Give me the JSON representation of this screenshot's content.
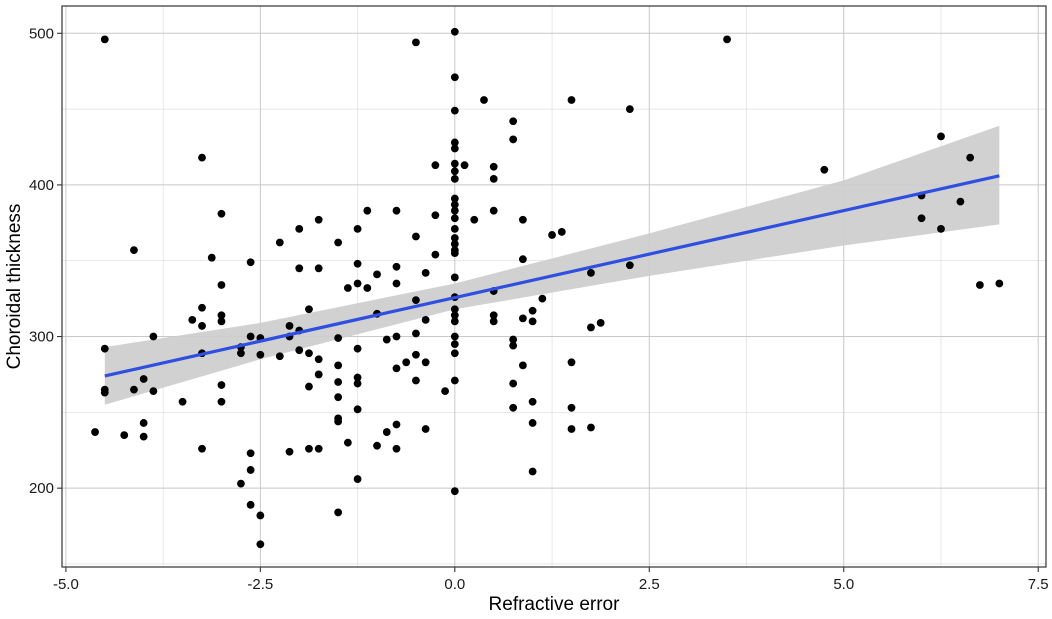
{
  "chart_data": {
    "type": "scatter",
    "title": "",
    "xlabel": "Refractive error",
    "ylabel": "Choroidal thickness",
    "xlim": [
      -5.05,
      7.6
    ],
    "ylim": [
      148,
      518
    ],
    "x_ticks": [
      -5.0,
      -2.5,
      0.0,
      2.5,
      5.0,
      7.5
    ],
    "x_tick_labels": [
      "-5.0",
      "-2.5",
      "0.0",
      "2.5",
      "5.0",
      "7.5"
    ],
    "y_ticks": [
      200,
      300,
      400,
      500
    ],
    "y_tick_labels": [
      "200",
      "300",
      "400",
      "500"
    ],
    "grid": true,
    "legend": "none",
    "colors": {
      "points": "#000000",
      "fit_line": "#2f4fe0",
      "confidence_band": "#cccccc",
      "grid": "#d9d9d9",
      "panel_border": "#333333"
    },
    "fit_line": {
      "x": [
        -4.5,
        7.0
      ],
      "y": [
        274,
        406
      ]
    },
    "confidence_band": {
      "x": [
        -4.5,
        -2.5,
        0.0,
        2.5,
        5.0,
        7.0
      ],
      "lower": [
        255,
        285,
        318,
        340,
        360,
        374
      ],
      "upper": [
        293,
        309,
        335,
        368,
        403,
        439
      ]
    },
    "points": [
      [
        -4.5,
        496
      ],
      [
        -4.5,
        292
      ],
      [
        -4.5,
        265
      ],
      [
        -4.5,
        263
      ],
      [
        -4.625,
        237
      ],
      [
        -4.25,
        235
      ],
      [
        -4.125,
        357
      ],
      [
        -4.125,
        265
      ],
      [
        -4.0,
        272
      ],
      [
        -4.0,
        243
      ],
      [
        -4.0,
        234
      ],
      [
        -3.875,
        300
      ],
      [
        -3.875,
        264
      ],
      [
        -3.5,
        257
      ],
      [
        -3.375,
        311
      ],
      [
        -3.25,
        418
      ],
      [
        -3.25,
        319
      ],
      [
        -3.25,
        307
      ],
      [
        -3.25,
        289
      ],
      [
        -3.25,
        226
      ],
      [
        -3.125,
        352
      ],
      [
        -3.0,
        381
      ],
      [
        -3.0,
        334
      ],
      [
        -3.0,
        314
      ],
      [
        -3.0,
        310
      ],
      [
        -3.0,
        268
      ],
      [
        -3.0,
        257
      ],
      [
        -2.75,
        293
      ],
      [
        -2.75,
        289
      ],
      [
        -2.75,
        203
      ],
      [
        -2.625,
        349
      ],
      [
        -2.625,
        300
      ],
      [
        -2.625,
        223
      ],
      [
        -2.625,
        212
      ],
      [
        -2.625,
        189
      ],
      [
        -2.5,
        299
      ],
      [
        -2.5,
        288
      ],
      [
        -2.5,
        182
      ],
      [
        -2.5,
        163
      ],
      [
        -2.25,
        362
      ],
      [
        -2.25,
        287
      ],
      [
        -2.125,
        307
      ],
      [
        -2.125,
        300
      ],
      [
        -2.125,
        224
      ],
      [
        -2.0,
        371
      ],
      [
        -2.0,
        345
      ],
      [
        -2.0,
        304
      ],
      [
        -2.0,
        291
      ],
      [
        -1.875,
        318
      ],
      [
        -1.875,
        289
      ],
      [
        -1.875,
        267
      ],
      [
        -1.875,
        226
      ],
      [
        -1.75,
        377
      ],
      [
        -1.75,
        345
      ],
      [
        -1.75,
        285
      ],
      [
        -1.75,
        275
      ],
      [
        -1.75,
        226
      ],
      [
        -1.5,
        362
      ],
      [
        -1.5,
        299
      ],
      [
        -1.5,
        281
      ],
      [
        -1.5,
        270
      ],
      [
        -1.5,
        260
      ],
      [
        -1.5,
        246
      ],
      [
        -1.5,
        244
      ],
      [
        -1.5,
        184
      ],
      [
        -1.375,
        332
      ],
      [
        -1.375,
        230
      ],
      [
        -1.25,
        371
      ],
      [
        -1.25,
        348
      ],
      [
        -1.25,
        335
      ],
      [
        -1.25,
        292
      ],
      [
        -1.25,
        273
      ],
      [
        -1.25,
        269
      ],
      [
        -1.25,
        252
      ],
      [
        -1.25,
        206
      ],
      [
        -1.125,
        383
      ],
      [
        -1.125,
        332
      ],
      [
        -1.0,
        341
      ],
      [
        -1.0,
        315
      ],
      [
        -1.0,
        228
      ],
      [
        -0.875,
        298
      ],
      [
        -0.875,
        237
      ],
      [
        -0.75,
        383
      ],
      [
        -0.75,
        346
      ],
      [
        -0.75,
        335
      ],
      [
        -0.75,
        300
      ],
      [
        -0.75,
        279
      ],
      [
        -0.75,
        242
      ],
      [
        -0.75,
        226
      ],
      [
        -0.625,
        283
      ],
      [
        -0.5,
        494
      ],
      [
        -0.5,
        366
      ],
      [
        -0.5,
        324
      ],
      [
        -0.5,
        302
      ],
      [
        -0.5,
        288
      ],
      [
        -0.5,
        271
      ],
      [
        -0.375,
        342
      ],
      [
        -0.375,
        311
      ],
      [
        -0.375,
        283
      ],
      [
        -0.375,
        239
      ],
      [
        -0.25,
        413
      ],
      [
        -0.25,
        380
      ],
      [
        -0.25,
        354
      ],
      [
        -0.125,
        264
      ],
      [
        0.0,
        501
      ],
      [
        0.0,
        471
      ],
      [
        0.0,
        449
      ],
      [
        0.0,
        428
      ],
      [
        0.0,
        424
      ],
      [
        0.0,
        414
      ],
      [
        0.0,
        409
      ],
      [
        0.0,
        404
      ],
      [
        0.0,
        391
      ],
      [
        0.0,
        387
      ],
      [
        0.0,
        383
      ],
      [
        0.0,
        378
      ],
      [
        0.0,
        371
      ],
      [
        0.0,
        365
      ],
      [
        0.0,
        361
      ],
      [
        0.0,
        357
      ],
      [
        0.0,
        355
      ],
      [
        0.0,
        339
      ],
      [
        0.0,
        326
      ],
      [
        0.0,
        318
      ],
      [
        0.0,
        314
      ],
      [
        0.0,
        310
      ],
      [
        0.0,
        300
      ],
      [
        0.0,
        295
      ],
      [
        0.0,
        289
      ],
      [
        0.0,
        271
      ],
      [
        0.0,
        198
      ],
      [
        0.125,
        413
      ],
      [
        0.25,
        377
      ],
      [
        0.375,
        456
      ],
      [
        0.5,
        412
      ],
      [
        0.5,
        404
      ],
      [
        0.5,
        383
      ],
      [
        0.5,
        330
      ],
      [
        0.5,
        314
      ],
      [
        0.5,
        310
      ],
      [
        0.75,
        442
      ],
      [
        0.75,
        430
      ],
      [
        0.75,
        298
      ],
      [
        0.75,
        294
      ],
      [
        0.75,
        269
      ],
      [
        0.75,
        253
      ],
      [
        0.875,
        377
      ],
      [
        0.875,
        351
      ],
      [
        0.875,
        312
      ],
      [
        0.875,
        281
      ],
      [
        1.0,
        317
      ],
      [
        1.0,
        310
      ],
      [
        1.0,
        257
      ],
      [
        1.0,
        243
      ],
      [
        1.0,
        211
      ],
      [
        1.125,
        325
      ],
      [
        1.25,
        367
      ],
      [
        1.375,
        369
      ],
      [
        1.5,
        456
      ],
      [
        1.5,
        283
      ],
      [
        1.5,
        253
      ],
      [
        1.5,
        239
      ],
      [
        1.75,
        342
      ],
      [
        1.75,
        306
      ],
      [
        1.75,
        240
      ],
      [
        1.875,
        309
      ],
      [
        2.25,
        450
      ],
      [
        2.25,
        347
      ],
      [
        3.5,
        496
      ],
      [
        4.75,
        410
      ],
      [
        6.0,
        393
      ],
      [
        6.0,
        378
      ],
      [
        6.25,
        432
      ],
      [
        6.25,
        371
      ],
      [
        6.5,
        389
      ],
      [
        6.625,
        418
      ],
      [
        6.75,
        334
      ],
      [
        7.0,
        335
      ]
    ]
  }
}
